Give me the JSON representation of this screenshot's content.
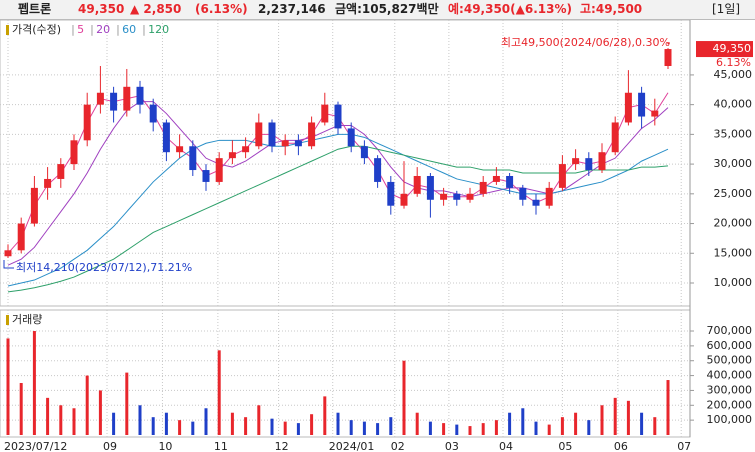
{
  "header": {
    "name": "펩트론",
    "price": "49,350",
    "change": "▲ 2,850",
    "change_pct": "(6.13%)",
    "volume": "2,237,146",
    "amount": "금액:105,827백만",
    "expected": "예:49,350(▲6.13%)",
    "high": "고:49,500",
    "period": "[1일]"
  },
  "chart_data": [
    {
      "type": "candlestick",
      "legend_title": "가격(수정)",
      "up_color": "#e8262c",
      "down_color": "#1f3fc8",
      "grid": true,
      "open": [
        14500,
        15500,
        20000,
        26000,
        27500,
        30000,
        34000,
        40000,
        42000,
        39000,
        43000,
        40000,
        37000,
        32000,
        33000,
        29000,
        27000,
        31000,
        32000,
        33000,
        37000,
        33000,
        34000,
        33000,
        37000,
        40000,
        36000,
        33000,
        31000,
        27000,
        23000,
        25000,
        28000,
        24000,
        25000,
        24000,
        25000,
        27000,
        28000,
        26000,
        24000,
        23000,
        26000,
        30000,
        31000,
        29000,
        32000,
        37000,
        42000,
        38000,
        46500
      ],
      "high": [
        16500,
        21000,
        28000,
        29500,
        31000,
        35000,
        42000,
        46500,
        43000,
        46000,
        44000,
        41000,
        37500,
        35000,
        34000,
        30000,
        32000,
        34000,
        34500,
        38500,
        37500,
        35000,
        35000,
        38000,
        42000,
        40500,
        37000,
        34000,
        31500,
        28000,
        30500,
        29500,
        28500,
        26000,
        25500,
        26000,
        28000,
        29500,
        28500,
        26500,
        25000,
        27000,
        31500,
        32500,
        32000,
        33500,
        38000,
        45800,
        43000,
        41000,
        49500
      ],
      "low": [
        14210,
        15000,
        19500,
        24000,
        26000,
        29000,
        33000,
        38500,
        37000,
        38000,
        38500,
        35500,
        30500,
        31000,
        28000,
        25500,
        26500,
        30000,
        31000,
        32500,
        32000,
        31500,
        31500,
        32500,
        36500,
        35000,
        32000,
        30000,
        26000,
        21500,
        22500,
        24500,
        21000,
        23000,
        23000,
        23500,
        24500,
        26500,
        25000,
        23000,
        21500,
        22500,
        25500,
        29000,
        28000,
        28500,
        31500,
        36500,
        36000,
        36500,
        46000
      ],
      "close": [
        15500,
        20000,
        26000,
        27500,
        30000,
        34000,
        40000,
        42000,
        39000,
        43000,
        40000,
        37000,
        32000,
        33000,
        29000,
        27000,
        31000,
        32000,
        33000,
        37000,
        33000,
        34000,
        33000,
        37000,
        40000,
        36000,
        33000,
        31000,
        27000,
        23000,
        25000,
        28000,
        24000,
        25000,
        24000,
        25000,
        27000,
        28000,
        26000,
        24000,
        23000,
        26000,
        30000,
        31000,
        29000,
        32000,
        37000,
        42000,
        38000,
        39000,
        49350
      ],
      "series": [
        {
          "name": "5",
          "color": "#e0409a",
          "values": [
            15000,
            17500,
            23000,
            26500,
            28500,
            32000,
            37000,
            41000,
            40500,
            41000,
            41500,
            38500,
            34500,
            32500,
            31000,
            28000,
            29000,
            31500,
            32500,
            35000,
            35000,
            33500,
            33500,
            35000,
            38500,
            38000,
            34500,
            32000,
            29000,
            25000,
            24000,
            26500,
            26000,
            24500,
            24500,
            24500,
            26000,
            27500,
            27000,
            25000,
            23500,
            24500,
            28000,
            30500,
            30000,
            30500,
            34500,
            39500,
            40000,
            38500,
            42000
          ]
        },
        {
          "name": "20",
          "color": "#a040c0",
          "values": [
            13000,
            14000,
            16000,
            19000,
            22000,
            25000,
            28500,
            32500,
            36000,
            39000,
            40500,
            40500,
            38500,
            36000,
            33500,
            31000,
            30000,
            29500,
            30500,
            32000,
            33500,
            34000,
            34000,
            34500,
            35500,
            36500,
            36500,
            35000,
            32500,
            29500,
            27000,
            26000,
            25500,
            25500,
            25000,
            24500,
            25000,
            25500,
            26000,
            26000,
            25500,
            25000,
            25500,
            27000,
            28500,
            30000,
            31000,
            33500,
            36000,
            37500,
            39500
          ]
        },
        {
          "name": "60",
          "color": "#2a8fc8",
          "values": [
            9500,
            10000,
            10500,
            11500,
            12500,
            14000,
            15500,
            17500,
            19500,
            22000,
            24500,
            27000,
            29000,
            31000,
            32500,
            33500,
            34000,
            34000,
            34000,
            33500,
            33000,
            33000,
            33500,
            34000,
            34500,
            35000,
            35000,
            34500,
            33500,
            32500,
            31500,
            30500,
            29500,
            28500,
            27500,
            27000,
            26500,
            26000,
            25500,
            25000,
            25000,
            25000,
            25500,
            26000,
            26500,
            27000,
            28000,
            29000,
            30500,
            31500,
            32500
          ]
        },
        {
          "name": "120",
          "color": "#2ea06a",
          "values": [
            8500,
            8800,
            9200,
            9700,
            10300,
            11000,
            12000,
            13000,
            14000,
            15500,
            17000,
            18500,
            19500,
            20500,
            21500,
            22500,
            23500,
            24500,
            25500,
            26500,
            27500,
            28500,
            29500,
            30500,
            31500,
            32500,
            33000,
            33000,
            32500,
            32000,
            31500,
            31000,
            30500,
            30000,
            29500,
            29500,
            29000,
            29000,
            29000,
            28500,
            28500,
            28500,
            28500,
            28500,
            29000,
            29000,
            29000,
            29000,
            29500,
            29500,
            29700
          ]
        }
      ],
      "ylim": [
        6300,
        53900
      ],
      "yticks": [
        {
          "value": 10000,
          "label": "10,000"
        },
        {
          "value": 15000,
          "label": "15,000"
        },
        {
          "value": 20000,
          "label": "20,000"
        },
        {
          "value": 25000,
          "label": "25,000"
        },
        {
          "value": 30000,
          "label": "30,000"
        },
        {
          "value": 35000,
          "label": "35,000"
        },
        {
          "value": 40000,
          "label": "40,000"
        },
        {
          "value": 45000,
          "label": "45,000"
        }
      ],
      "annotations": [
        "최고49,500(2024/06/28),0.30%",
        "최저14,210(2023/07/12),71.21%"
      ],
      "last_price_label": "49,350",
      "last_change_label": "6.13%"
    },
    {
      "type": "volume",
      "legend_title": "거래량",
      "grid": true,
      "values": [
        650000,
        350000,
        700000,
        250000,
        200000,
        180000,
        400000,
        300000,
        150000,
        420000,
        200000,
        120000,
        150000,
        100000,
        90000,
        180000,
        570000,
        150000,
        120000,
        200000,
        110000,
        90000,
        80000,
        140000,
        260000,
        150000,
        100000,
        90000,
        80000,
        120000,
        500000,
        150000,
        90000,
        80000,
        70000,
        60000,
        80000,
        100000,
        150000,
        180000,
        90000,
        70000,
        120000,
        150000,
        100000,
        200000,
        250000,
        230000,
        150000,
        120000,
        370000
      ],
      "ylim": [
        0,
        828000
      ],
      "yticks": [
        {
          "value": 100000,
          "label": "100,000"
        },
        {
          "value": 200000,
          "label": "200,000"
        },
        {
          "value": 300000,
          "label": "300,000"
        },
        {
          "value": 400000,
          "label": "400,000"
        },
        {
          "value": 500000,
          "label": "500,000"
        },
        {
          "value": 600000,
          "label": "600,000"
        },
        {
          "value": 700000,
          "label": "700,000"
        }
      ],
      "xticks": [
        {
          "value": 0,
          "label": "2023/07/12"
        },
        {
          "value": 7.5,
          "label": "09"
        },
        {
          "value": 11.7,
          "label": "10"
        },
        {
          "value": 15.9,
          "label": "11"
        },
        {
          "value": 20.5,
          "label": "12"
        },
        {
          "value": 24.6,
          "label": "2024/01"
        },
        {
          "value": 29.3,
          "label": "02"
        },
        {
          "value": 33.4,
          "label": "03"
        },
        {
          "value": 37.5,
          "label": "04"
        },
        {
          "value": 42,
          "label": "05"
        },
        {
          "value": 46.2,
          "label": "06"
        },
        {
          "value": 51,
          "label": "07"
        }
      ]
    }
  ]
}
